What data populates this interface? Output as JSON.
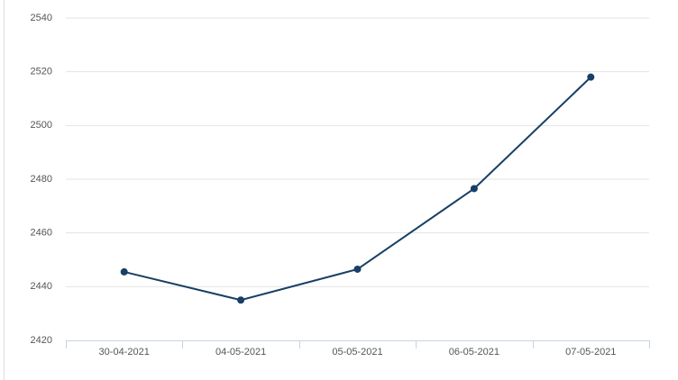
{
  "chart_data": {
    "type": "line",
    "categories": [
      "30-04-2021",
      "04-05-2021",
      "05-05-2021",
      "06-05-2021",
      "07-05-2021"
    ],
    "series": [
      {
        "color": "#183f66",
        "values": [
          2445.5,
          2435,
          2446.5,
          2476.5,
          2518
        ]
      }
    ],
    "ylim": [
      2420,
      2540
    ],
    "yticks": [
      2420,
      2440,
      2460,
      2480,
      2500,
      2520,
      2540
    ],
    "grid": true
  }
}
